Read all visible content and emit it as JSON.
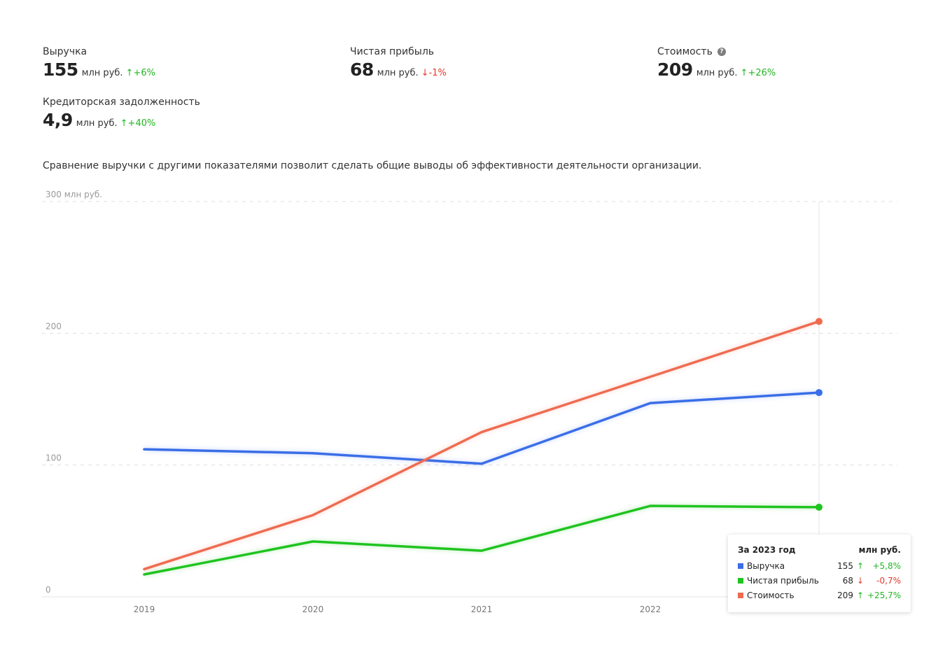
{
  "metrics": [
    {
      "label": "Выручка",
      "value": "155",
      "unit": "млн руб.",
      "direction": "up",
      "arrow": "↑",
      "delta": "+6%"
    },
    {
      "label": "Чистая прибыль",
      "value": "68",
      "unit": "млн руб.",
      "direction": "down",
      "arrow": "↓",
      "delta": "-1%"
    },
    {
      "label": "Стоимость",
      "value": "209",
      "unit": "млн руб.",
      "direction": "up",
      "arrow": "↑",
      "delta": "+26%",
      "help_icon": "question-circle-icon",
      "help_glyph": "?"
    },
    {
      "label": "Кредиторская задолженность",
      "value": "4,9",
      "unit": "млн руб.",
      "direction": "up",
      "arrow": "↑",
      "delta": "+40%"
    }
  ],
  "description": "Сравнение выручки с другими показателями позволит сделать общие выводы об эффективности деятельности организации.",
  "colors": {
    "up": "#22b522",
    "down": "#e5382b"
  },
  "chart_data": {
    "type": "line",
    "x": [
      "2019",
      "2020",
      "2021",
      "2022",
      "2023"
    ],
    "x_tick_labels": [
      "2019",
      "2020",
      "2021",
      "2022"
    ],
    "y_ticks": [
      {
        "value": 0,
        "label": "0"
      },
      {
        "value": 100,
        "label": "100"
      },
      {
        "value": 200,
        "label": "200"
      },
      {
        "value": 300,
        "label": "300 млн руб."
      }
    ],
    "ylim": [
      0,
      300
    ],
    "grid": true,
    "series": [
      {
        "name": "Выручка",
        "color": "#3a6ee8",
        "values": [
          112,
          109,
          101,
          147,
          155
        ]
      },
      {
        "name": "Чистая прибыль",
        "color": "#1fc41f",
        "values": [
          17,
          42,
          35,
          69,
          68
        ]
      },
      {
        "name": "Стоимость",
        "color": "#ef6b50",
        "values": [
          21,
          62,
          125,
          167,
          209
        ]
      }
    ]
  },
  "tooltip": {
    "title": "За 2023 год",
    "unit": "млн руб.",
    "rows": [
      {
        "name": "Выручка",
        "color": "#3a6ee8",
        "value": "155",
        "arrow": "↑",
        "direction": "up",
        "pct": "+5,8%"
      },
      {
        "name": "Чистая прибыль",
        "color": "#1fc41f",
        "value": "68",
        "arrow": "↓",
        "direction": "down",
        "pct": "-0,7%"
      },
      {
        "name": "Стоимость",
        "color": "#ef6b50",
        "value": "209",
        "arrow": "↑",
        "direction": "up",
        "pct": "+25,7%"
      }
    ]
  }
}
